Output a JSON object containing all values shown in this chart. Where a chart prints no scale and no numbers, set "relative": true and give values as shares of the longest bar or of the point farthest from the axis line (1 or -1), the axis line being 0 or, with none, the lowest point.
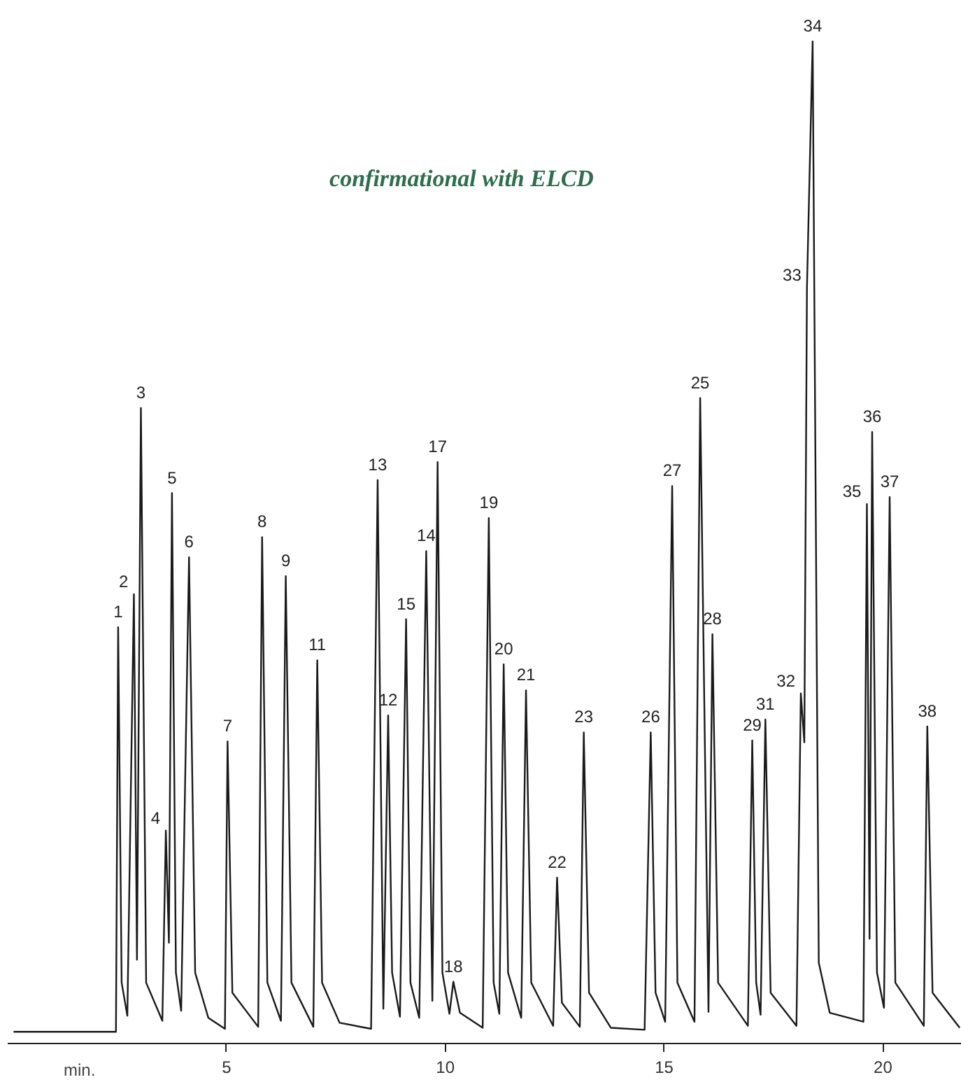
{
  "chart_data": {
    "type": "line",
    "relative": true,
    "xlabel": "min.",
    "xlim": [
      0,
      21.8
    ],
    "xticks": [
      5,
      10,
      15,
      20
    ],
    "grid": false,
    "x": [
      0.15,
      2.49,
      2.54,
      2.62,
      2.75,
      2.9,
      2.97,
      3.06,
      3.18,
      3.55,
      3.63,
      3.7,
      3.77,
      3.86,
      3.98,
      4.16,
      4.3,
      4.6,
      4.98,
      5.04,
      5.15,
      5.74,
      5.83,
      5.95,
      6.26,
      6.37,
      6.5,
      7.0,
      7.09,
      7.2,
      7.6,
      8.32,
      8.47,
      8.6,
      8.71,
      8.8,
      8.98,
      9.12,
      9.22,
      9.42,
      9.58,
      9.72,
      9.84,
      9.95,
      10.11,
      10.2,
      10.35,
      10.87,
      11.01,
      11.12,
      11.25,
      11.35,
      11.45,
      11.75,
      11.86,
      11.98,
      12.48,
      12.57,
      12.68,
      13.09,
      13.18,
      13.3,
      13.8,
      14.57,
      14.71,
      14.82,
      15.04,
      15.2,
      15.32,
      15.71,
      15.84,
      16.03,
      16.12,
      16.25,
      16.93,
      17.03,
      17.12,
      17.22,
      17.33,
      17.45,
      18.04,
      18.14,
      18.22,
      18.28,
      18.41,
      18.55,
      18.8,
      19.57,
      19.65,
      19.71,
      19.77,
      19.88,
      20.04,
      20.17,
      20.3,
      20.95,
      21.03,
      21.15,
      21.77
    ],
    "series": [
      {
        "color": "#1a1a1a",
        "values": [
          0.011,
          0.011,
          0.415,
          0.06,
          0.027,
          0.448,
          0.083,
          0.634,
          0.06,
          0.022,
          0.212,
          0.1,
          0.549,
          0.07,
          0.032,
          0.485,
          0.07,
          0.025,
          0.014,
          0.301,
          0.05,
          0.016,
          0.505,
          0.06,
          0.022,
          0.466,
          0.06,
          0.016,
          0.382,
          0.06,
          0.02,
          0.014,
          0.562,
          0.034,
          0.327,
          0.07,
          0.026,
          0.423,
          0.06,
          0.025,
          0.491,
          0.042,
          0.58,
          0.07,
          0.029,
          0.061,
          0.03,
          0.015,
          0.524,
          0.06,
          0.029,
          0.378,
          0.07,
          0.025,
          0.352,
          0.06,
          0.017,
          0.165,
          0.04,
          0.016,
          0.31,
          0.05,
          0.015,
          0.013,
          0.31,
          0.05,
          0.021,
          0.556,
          0.06,
          0.021,
          0.644,
          0.031,
          0.408,
          0.06,
          0.017,
          0.302,
          0.06,
          0.028,
          0.323,
          0.05,
          0.017,
          0.349,
          0.3,
          0.754,
          1.0,
          0.08,
          0.03,
          0.021,
          0.538,
          0.104,
          0.61,
          0.07,
          0.035,
          0.545,
          0.06,
          0.017,
          0.316,
          0.05,
          0.015
        ]
      }
    ],
    "annotations": [
      "confirmational with ELCD",
      {
        "text": "1",
        "x": 2.54,
        "y": 0.415
      },
      {
        "text": "2",
        "x": 2.9,
        "y": 0.448
      },
      {
        "text": "3",
        "x": 3.06,
        "y": 0.634
      },
      {
        "text": "4",
        "x": 3.63,
        "y": 0.212
      },
      {
        "text": "5",
        "x": 3.77,
        "y": 0.549
      },
      {
        "text": "6",
        "x": 4.16,
        "y": 0.485
      },
      {
        "text": "7",
        "x": 5.04,
        "y": 0.301
      },
      {
        "text": "8",
        "x": 5.83,
        "y": 0.505
      },
      {
        "text": "9",
        "x": 6.37,
        "y": 0.466
      },
      {
        "text": "11",
        "x": 7.09,
        "y": 0.382
      },
      {
        "text": "13",
        "x": 8.47,
        "y": 0.562
      },
      {
        "text": "12",
        "x": 8.71,
        "y": 0.327
      },
      {
        "text": "15",
        "x": 9.12,
        "y": 0.423
      },
      {
        "text": "14",
        "x": 9.58,
        "y": 0.491
      },
      {
        "text": "17",
        "x": 9.84,
        "y": 0.58
      },
      {
        "text": "18",
        "x": 10.2,
        "y": 0.061
      },
      {
        "text": "19",
        "x": 11.01,
        "y": 0.524
      },
      {
        "text": "20",
        "x": 11.35,
        "y": 0.378
      },
      {
        "text": "21",
        "x": 11.86,
        "y": 0.352
      },
      {
        "text": "22",
        "x": 12.57,
        "y": 0.165
      },
      {
        "text": "23",
        "x": 13.18,
        "y": 0.31
      },
      {
        "text": "26",
        "x": 14.71,
        "y": 0.31
      },
      {
        "text": "27",
        "x": 15.2,
        "y": 0.556
      },
      {
        "text": "25",
        "x": 15.84,
        "y": 0.644
      },
      {
        "text": "28",
        "x": 16.12,
        "y": 0.408
      },
      {
        "text": "29",
        "x": 17.03,
        "y": 0.302
      },
      {
        "text": "31",
        "x": 17.33,
        "y": 0.323
      },
      {
        "text": "32",
        "x": 18.14,
        "y": 0.349
      },
      {
        "text": "33",
        "x": 18.28,
        "y": 0.754
      },
      {
        "text": "34",
        "x": 18.41,
        "y": 1.0
      },
      {
        "text": "35",
        "x": 19.65,
        "y": 0.538
      },
      {
        "text": "36",
        "x": 19.77,
        "y": 0.61
      },
      {
        "text": "37",
        "x": 20.17,
        "y": 0.545
      },
      {
        "text": "38",
        "x": 21.03,
        "y": 0.316
      }
    ]
  }
}
